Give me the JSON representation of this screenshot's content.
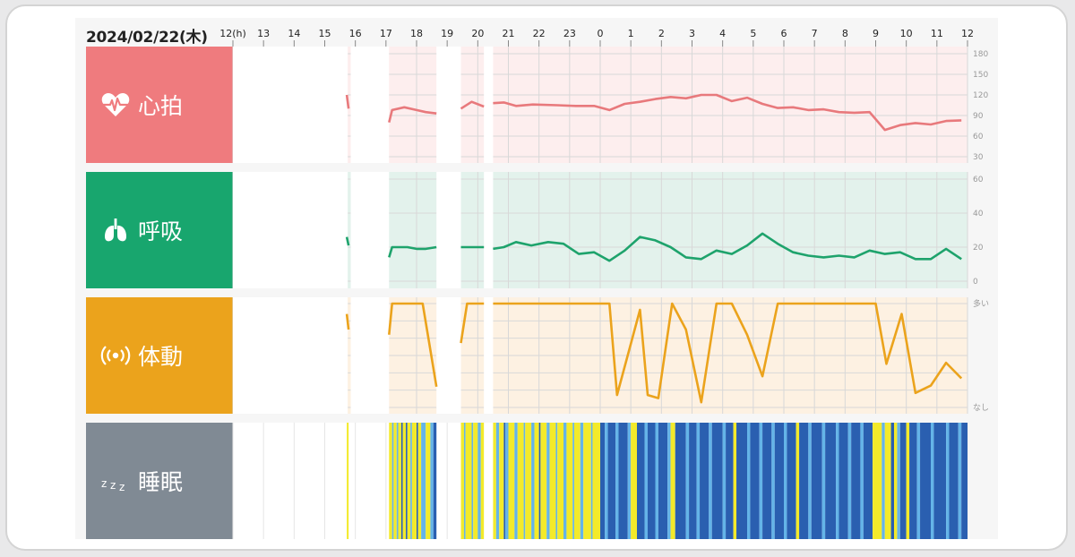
{
  "date": "2024/02/22(木)",
  "time_ticks": [
    "12(h)",
    "13",
    "14",
    "15",
    "16",
    "17",
    "18",
    "19",
    "20",
    "21",
    "22",
    "23",
    "0",
    "1",
    "2",
    "3",
    "4",
    "5",
    "6",
    "7",
    "8",
    "9",
    "10",
    "11",
    "12"
  ],
  "rows": [
    {
      "id": "heart",
      "label": "心拍",
      "icon": "heart-pulse-icon",
      "color": "#ef7b7e",
      "bg": "#fdeeee"
    },
    {
      "id": "resp",
      "label": "呼吸",
      "icon": "lungs-icon",
      "color": "#18a66e",
      "bg": "#e3f2ec"
    },
    {
      "id": "motion",
      "label": "体動",
      "icon": "vibration-icon",
      "color": "#eba31c",
      "bg": "#fdf1e2"
    },
    {
      "id": "sleep",
      "label": "睡眠",
      "icon": "zzz-icon",
      "color": "#808a94",
      "bg": "#ffffff"
    }
  ],
  "colors": {
    "heart_line": "#e8797c",
    "resp_line": "#1ea36c",
    "motion_line": "#eba31c",
    "sleep_light": "#f3ea2a",
    "sleep_mid": "#64b4e8",
    "sleep_deep": "#2a5fb0"
  },
  "chart_data": [
    {
      "type": "line",
      "title": "心拍",
      "x_unit": "hours since 12:00",
      "xlim": [
        0,
        24
      ],
      "yticks": [
        "180",
        "150",
        "120",
        "90",
        "60",
        "30"
      ],
      "ylim": [
        30,
        180
      ],
      "grid": true,
      "no_data_ranges": [
        [
          0,
          3.75
        ],
        [
          3.85,
          5.1
        ],
        [
          6.65,
          7.45
        ],
        [
          8.2,
          8.5
        ]
      ],
      "series": [
        {
          "points": [
            [
              3.72,
              120
            ],
            [
              3.78,
              100
            ],
            [
              5.1,
              80
            ],
            [
              5.2,
              98
            ],
            [
              5.6,
              102
            ],
            [
              6.0,
              98
            ],
            [
              6.3,
              95
            ],
            [
              6.65,
              93
            ],
            [
              7.45,
              100
            ],
            [
              7.8,
              110
            ],
            [
              8.2,
              103
            ],
            [
              8.5,
              108
            ],
            [
              8.85,
              109
            ],
            [
              9.25,
              104
            ],
            [
              9.8,
              106
            ],
            [
              10.6,
              105
            ],
            [
              11.2,
              104
            ],
            [
              11.8,
              104
            ],
            [
              12.3,
              98
            ],
            [
              12.8,
              107
            ],
            [
              13.3,
              110
            ],
            [
              13.8,
              114
            ],
            [
              14.3,
              117
            ],
            [
              14.8,
              115
            ],
            [
              15.3,
              120
            ],
            [
              15.8,
              120
            ],
            [
              16.3,
              111
            ],
            [
              16.8,
              116
            ],
            [
              17.3,
              107
            ],
            [
              17.8,
              101
            ],
            [
              18.3,
              102
            ],
            [
              18.8,
              98
            ],
            [
              19.3,
              99
            ],
            [
              19.8,
              95
            ],
            [
              20.3,
              94
            ],
            [
              20.8,
              95
            ],
            [
              21.3,
              69
            ],
            [
              21.8,
              76
            ],
            [
              22.3,
              79
            ],
            [
              22.8,
              77
            ],
            [
              23.3,
              82
            ],
            [
              23.8,
              83
            ]
          ]
        }
      ]
    },
    {
      "type": "line",
      "title": "呼吸",
      "x_unit": "hours since 12:00",
      "xlim": [
        0,
        24
      ],
      "yticks": [
        "60",
        "40",
        "20",
        "0"
      ],
      "ylim": [
        0,
        60
      ],
      "grid": true,
      "no_data_ranges": [
        [
          0,
          3.75
        ],
        [
          3.85,
          5.1
        ],
        [
          6.65,
          7.45
        ],
        [
          8.2,
          8.5
        ]
      ],
      "series": [
        {
          "points": [
            [
              3.72,
              26
            ],
            [
              3.78,
              21
            ],
            [
              5.1,
              14
            ],
            [
              5.2,
              20
            ],
            [
              5.7,
              20
            ],
            [
              6.0,
              19
            ],
            [
              6.3,
              19
            ],
            [
              6.65,
              20
            ],
            [
              7.45,
              20
            ],
            [
              8.2,
              20
            ],
            [
              8.5,
              19
            ],
            [
              8.85,
              20
            ],
            [
              9.25,
              23
            ],
            [
              9.75,
              21
            ],
            [
              10.3,
              23
            ],
            [
              10.8,
              22
            ],
            [
              11.3,
              16
            ],
            [
              11.8,
              17
            ],
            [
              12.3,
              12
            ],
            [
              12.8,
              18
            ],
            [
              13.3,
              26
            ],
            [
              13.8,
              24
            ],
            [
              14.3,
              20
            ],
            [
              14.8,
              14
            ],
            [
              15.3,
              13
            ],
            [
              15.8,
              18
            ],
            [
              16.3,
              16
            ],
            [
              16.8,
              21
            ],
            [
              17.3,
              28
            ],
            [
              17.8,
              22
            ],
            [
              18.3,
              17
            ],
            [
              18.8,
              15
            ],
            [
              19.3,
              14
            ],
            [
              19.8,
              15
            ],
            [
              20.3,
              14
            ],
            [
              20.8,
              18
            ],
            [
              21.3,
              16
            ],
            [
              21.8,
              17
            ],
            [
              22.3,
              13
            ],
            [
              22.8,
              13
            ],
            [
              23.3,
              19
            ],
            [
              23.8,
              13
            ]
          ]
        }
      ]
    },
    {
      "type": "line",
      "title": "体動",
      "x_unit": "hours since 12:00",
      "xlim": [
        0,
        24
      ],
      "yticks": [
        "多い",
        "なし"
      ],
      "ylim": [
        0,
        100
      ],
      "grid": true,
      "no_data_ranges": [
        [
          0,
          3.75
        ],
        [
          3.85,
          5.1
        ],
        [
          6.65,
          7.45
        ],
        [
          8.2,
          8.5
        ]
      ],
      "series": [
        {
          "points": [
            [
              3.72,
              90
            ],
            [
              3.78,
              75
            ],
            [
              5.1,
              70
            ],
            [
              5.2,
              100
            ],
            [
              6.2,
              100
            ],
            [
              6.65,
              20
            ],
            [
              7.45,
              62
            ],
            [
              7.65,
              100
            ],
            [
              8.2,
              100
            ],
            [
              8.5,
              100
            ],
            [
              12.3,
              100
            ],
            [
              12.3,
              100
            ],
            [
              12.55,
              12
            ],
            [
              13.3,
              94
            ],
            [
              13.55,
              12
            ],
            [
              13.9,
              9
            ],
            [
              14.35,
              100
            ],
            [
              14.8,
              75
            ],
            [
              15.3,
              5
            ],
            [
              15.8,
              100
            ],
            [
              16.3,
              100
            ],
            [
              16.8,
              70
            ],
            [
              17.3,
              30
            ],
            [
              17.8,
              100
            ],
            [
              21.0,
              100
            ],
            [
              21.35,
              42
            ],
            [
              21.85,
              90
            ],
            [
              22.3,
              14
            ],
            [
              22.8,
              21
            ],
            [
              23.3,
              43
            ],
            [
              23.8,
              28
            ]
          ]
        }
      ]
    },
    {
      "type": "heatmap",
      "title": "睡眠",
      "x_unit": "hours since 12:00",
      "xlim": [
        0,
        24
      ],
      "levels": [
        "light",
        "mid",
        "deep"
      ],
      "segments": [
        [
          3.72,
          3.78,
          "light"
        ],
        [
          5.1,
          5.2,
          "light"
        ],
        [
          5.2,
          5.25,
          "mid"
        ],
        [
          5.25,
          5.35,
          "light"
        ],
        [
          5.35,
          5.4,
          "mid"
        ],
        [
          5.4,
          5.5,
          "light"
        ],
        [
          5.5,
          5.55,
          "deep"
        ],
        [
          5.55,
          5.65,
          "light"
        ],
        [
          5.65,
          5.7,
          "deep"
        ],
        [
          5.7,
          5.8,
          "light"
        ],
        [
          5.8,
          5.85,
          "mid"
        ],
        [
          5.85,
          6.0,
          "light"
        ],
        [
          6.0,
          6.05,
          "deep"
        ],
        [
          6.05,
          6.15,
          "light"
        ],
        [
          6.15,
          6.3,
          "mid"
        ],
        [
          6.3,
          6.45,
          "light"
        ],
        [
          6.45,
          6.55,
          "mid"
        ],
        [
          6.55,
          6.65,
          "deep"
        ],
        [
          7.45,
          7.55,
          "light"
        ],
        [
          7.55,
          7.6,
          "mid"
        ],
        [
          7.6,
          7.8,
          "light"
        ],
        [
          7.8,
          7.85,
          "mid"
        ],
        [
          7.85,
          8.0,
          "light"
        ],
        [
          8.0,
          8.1,
          "mid"
        ],
        [
          8.1,
          8.2,
          "light"
        ],
        [
          8.5,
          8.6,
          "light"
        ],
        [
          8.6,
          8.7,
          "mid"
        ],
        [
          8.7,
          8.85,
          "light"
        ],
        [
          8.85,
          8.9,
          "deep"
        ],
        [
          8.9,
          9.0,
          "mid"
        ],
        [
          9.0,
          9.2,
          "light"
        ],
        [
          9.2,
          9.3,
          "mid"
        ],
        [
          9.3,
          9.5,
          "light"
        ],
        [
          9.5,
          9.55,
          "mid"
        ],
        [
          9.55,
          9.75,
          "light"
        ],
        [
          9.75,
          9.85,
          "mid"
        ],
        [
          9.85,
          10.0,
          "light"
        ],
        [
          10.0,
          10.05,
          "deep"
        ],
        [
          10.05,
          10.25,
          "light"
        ],
        [
          10.25,
          10.35,
          "mid"
        ],
        [
          10.35,
          10.55,
          "light"
        ],
        [
          10.55,
          10.6,
          "mid"
        ],
        [
          10.6,
          10.8,
          "light"
        ],
        [
          10.8,
          10.9,
          "mid"
        ],
        [
          10.9,
          11.1,
          "light"
        ],
        [
          11.1,
          11.15,
          "mid"
        ],
        [
          11.15,
          11.35,
          "light"
        ],
        [
          11.35,
          11.45,
          "mid"
        ],
        [
          11.45,
          11.7,
          "light"
        ],
        [
          11.7,
          11.75,
          "mid"
        ],
        [
          11.75,
          12.0,
          "light"
        ],
        [
          12.0,
          12.15,
          "deep"
        ],
        [
          12.15,
          12.25,
          "mid"
        ],
        [
          12.25,
          12.5,
          "deep"
        ],
        [
          12.5,
          12.6,
          "mid"
        ],
        [
          12.6,
          12.9,
          "deep"
        ],
        [
          12.9,
          13.0,
          "mid"
        ],
        [
          13.0,
          13.2,
          "light"
        ],
        [
          13.2,
          13.45,
          "deep"
        ],
        [
          13.45,
          13.55,
          "mid"
        ],
        [
          13.55,
          13.8,
          "deep"
        ],
        [
          13.8,
          13.9,
          "mid"
        ],
        [
          13.9,
          14.2,
          "deep"
        ],
        [
          14.2,
          14.3,
          "mid"
        ],
        [
          14.3,
          14.45,
          "light"
        ],
        [
          14.45,
          14.8,
          "deep"
        ],
        [
          14.8,
          14.9,
          "mid"
        ],
        [
          14.9,
          15.15,
          "deep"
        ],
        [
          15.15,
          15.25,
          "mid"
        ],
        [
          15.25,
          15.55,
          "deep"
        ],
        [
          15.55,
          15.65,
          "mid"
        ],
        [
          15.65,
          16.0,
          "deep"
        ],
        [
          16.0,
          16.1,
          "mid"
        ],
        [
          16.1,
          16.35,
          "deep"
        ],
        [
          16.35,
          16.45,
          "light"
        ],
        [
          16.45,
          16.8,
          "deep"
        ],
        [
          16.8,
          16.9,
          "mid"
        ],
        [
          16.9,
          17.2,
          "deep"
        ],
        [
          17.2,
          17.3,
          "mid"
        ],
        [
          17.3,
          17.6,
          "deep"
        ],
        [
          17.6,
          17.7,
          "mid"
        ],
        [
          17.7,
          18.0,
          "deep"
        ],
        [
          18.0,
          18.1,
          "mid"
        ],
        [
          18.1,
          18.4,
          "deep"
        ],
        [
          18.4,
          18.5,
          "light"
        ],
        [
          18.5,
          18.8,
          "deep"
        ],
        [
          18.8,
          18.9,
          "mid"
        ],
        [
          18.9,
          19.25,
          "deep"
        ],
        [
          19.25,
          19.35,
          "mid"
        ],
        [
          19.35,
          19.7,
          "deep"
        ],
        [
          19.7,
          19.8,
          "mid"
        ],
        [
          19.8,
          20.1,
          "deep"
        ],
        [
          20.1,
          20.2,
          "mid"
        ],
        [
          20.2,
          20.5,
          "deep"
        ],
        [
          20.5,
          20.6,
          "mid"
        ],
        [
          20.6,
          20.9,
          "deep"
        ],
        [
          20.9,
          21.0,
          "light"
        ],
        [
          21.0,
          21.2,
          "light"
        ],
        [
          21.2,
          21.3,
          "mid"
        ],
        [
          21.3,
          21.5,
          "light"
        ],
        [
          21.5,
          21.6,
          "deep"
        ],
        [
          21.6,
          21.7,
          "light"
        ],
        [
          21.7,
          21.8,
          "mid"
        ],
        [
          21.8,
          22.0,
          "deep"
        ],
        [
          22.0,
          22.1,
          "light"
        ],
        [
          22.1,
          22.35,
          "deep"
        ],
        [
          22.35,
          22.45,
          "mid"
        ],
        [
          22.45,
          22.8,
          "deep"
        ],
        [
          22.8,
          22.9,
          "mid"
        ],
        [
          22.9,
          23.3,
          "deep"
        ],
        [
          23.3,
          23.4,
          "mid"
        ],
        [
          23.4,
          23.7,
          "deep"
        ],
        [
          23.7,
          23.8,
          "mid"
        ],
        [
          23.8,
          24.0,
          "deep"
        ]
      ]
    }
  ]
}
